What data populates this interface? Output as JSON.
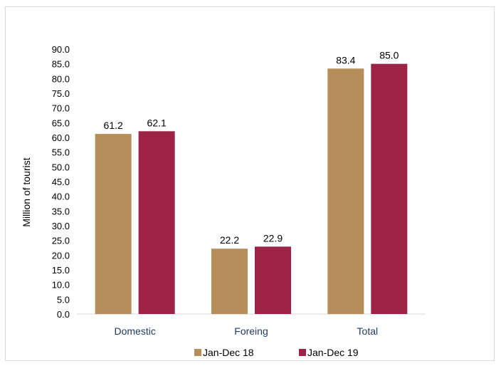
{
  "chart_data": {
    "type": "bar",
    "categories": [
      "Domestic",
      "Foreing",
      "Total"
    ],
    "series": [
      {
        "name": "Jan-Dec 18",
        "values": [
          61.2,
          22.2,
          83.4
        ],
        "color": "#b58e5a"
      },
      {
        "name": "Jan-Dec 19",
        "values": [
          62.1,
          22.9,
          85.0
        ],
        "color": "#9c2246"
      }
    ],
    "title": "",
    "xlabel": "",
    "ylabel": "Million of tourist",
    "ylim": [
      0,
      90
    ],
    "ytick_step": 5,
    "ytick_decimals": 1,
    "data_label_decimals": 1,
    "grid": false,
    "legend_position": "bottom",
    "category_label_color": "#1f3b63",
    "axis_color": "#d9d9d9"
  }
}
